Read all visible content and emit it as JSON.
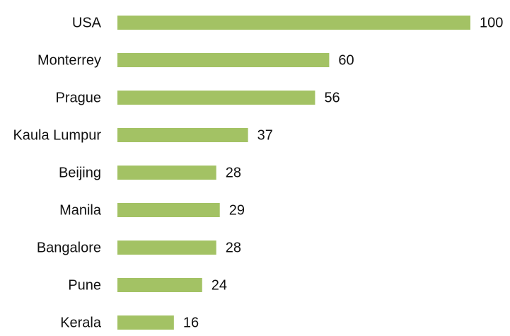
{
  "chart_data": {
    "type": "bar",
    "orientation": "horizontal",
    "categories": [
      "USA",
      "Monterrey",
      "Prague",
      "Kaula Lumpur",
      "Beijing",
      "Manila",
      "Bangalore",
      "Pune",
      "Kerala"
    ],
    "values": [
      100,
      60,
      56,
      37,
      28,
      29,
      28,
      24,
      16
    ],
    "color": "#a3c264"
  }
}
